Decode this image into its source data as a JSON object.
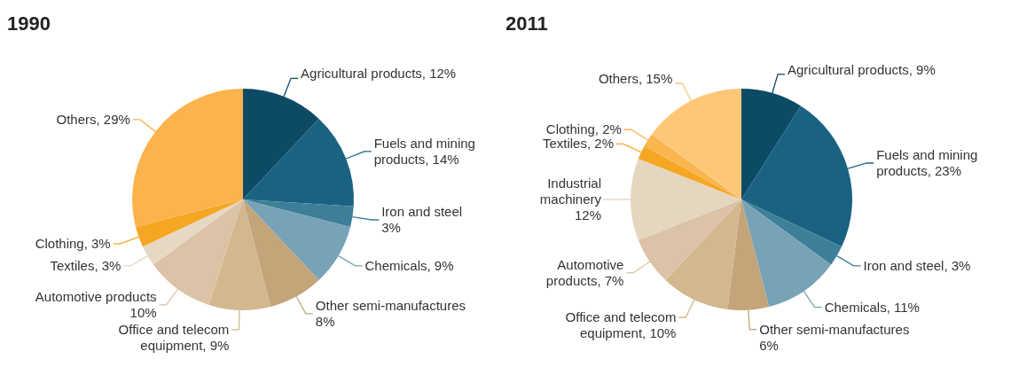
{
  "chart_data": [
    {
      "type": "pie",
      "title": "1990",
      "categories": [
        "Agricultural products",
        "Fuels and mining products",
        "Iron and steel",
        "Chemicals",
        "Other semi-manufactures",
        "Office and telecom equipment",
        "Automotive products",
        "Textiles",
        "Clothing",
        "Others"
      ],
      "values": [
        12,
        14,
        3,
        9,
        8,
        9,
        10,
        3,
        3,
        29
      ],
      "value_labels": [
        "12%",
        "14%",
        "3%",
        "9%",
        "8%",
        "9%",
        "10%",
        "3%",
        "3%",
        "29%"
      ],
      "colors": [
        "#0d4a66",
        "#1a6282",
        "#3d7f98",
        "#78a3b7",
        "#c4a479",
        "#d3b78f",
        "#dcc2a6",
        "#e6d8c2",
        "#f5a623",
        "#fbb34d"
      ]
    },
    {
      "type": "pie",
      "title": "2011",
      "categories": [
        "Agricultural products",
        "Fuels and mining products",
        "Iron and steel",
        "Chemicals",
        "Other semi-manufactures",
        "Office and telecom equipment",
        "Automotive products",
        "Industrial machinery",
        "Textiles",
        "Clothing",
        "Others"
      ],
      "values": [
        9,
        23,
        3,
        11,
        6,
        10,
        7,
        12,
        2,
        2,
        15
      ],
      "value_labels": [
        "9%",
        "23%",
        "3%",
        "11%",
        "6%",
        "10%",
        "7%",
        "12%",
        "2%",
        "2%",
        "15%"
      ],
      "colors": [
        "#0d4a66",
        "#1a6282",
        "#3d7f98",
        "#78a3b7",
        "#c4a479",
        "#d3b78f",
        "#dcc2a6",
        "#e4d6bf",
        "#f5a623",
        "#f9b54e",
        "#fcc878"
      ]
    }
  ]
}
